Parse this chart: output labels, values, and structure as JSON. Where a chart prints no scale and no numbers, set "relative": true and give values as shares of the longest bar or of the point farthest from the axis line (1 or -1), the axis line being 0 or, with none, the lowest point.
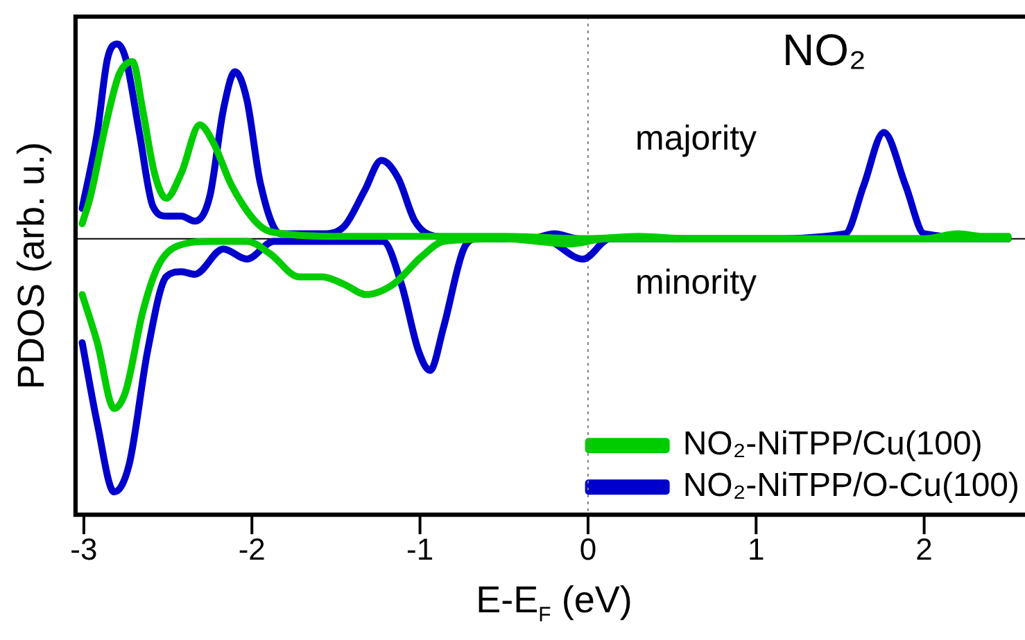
{
  "chart_data": {
    "type": "line",
    "relative": true,
    "xlabel": "E-E$_{F}$ (eV)",
    "ylabel": "PDOS (arb. u.)",
    "annotations": [
      "NO₂",
      "majority",
      "minority"
    ],
    "xlim": [
      -3.05,
      2.6
    ],
    "xticks": [
      -3,
      -2,
      -1,
      0,
      1,
      2
    ],
    "legend": "bottom right",
    "line_style": "solid",
    "marker": "none",
    "grid": false,
    "ref_lines": [
      {
        "axis": "x",
        "value": 0,
        "color": "#808080",
        "line_style": "dotted"
      },
      {
        "axis": "y",
        "value": 0,
        "color": "#000000",
        "line_style": "solid"
      }
    ],
    "series": [
      {
        "name": "NO₂-NiTPP/Cu(100)",
        "color": "#00cc00",
        "x": [
          -3.01,
          -2.96,
          -2.87,
          -2.79,
          -2.71,
          -2.65,
          -2.58,
          -2.51,
          -2.42,
          -2.31,
          -2.23,
          -2.12,
          -1.95,
          -1.81,
          -1.5,
          -1.0,
          -0.5,
          0.0,
          0.3,
          0.6,
          1.0,
          1.5,
          2.0,
          2.2,
          2.35,
          2.5
        ],
        "values": [
          0.06,
          0.17,
          0.45,
          0.65,
          0.7,
          0.51,
          0.26,
          0.16,
          0.26,
          0.45,
          0.38,
          0.21,
          0.05,
          0.02,
          0.01,
          0.01,
          0.01,
          0.0,
          0.01,
          0.0,
          0.0,
          0.0,
          0.0,
          0.02,
          0.01,
          0.01
        ]
      },
      {
        "color": "#00cc00",
        "x": [
          -3.01,
          -2.92,
          -2.82,
          -2.75,
          -2.65,
          -2.56,
          -2.45,
          -2.23,
          -2.03,
          -1.89,
          -1.72,
          -1.58,
          -1.45,
          -1.32,
          -1.16,
          -0.99,
          -0.86,
          -0.5,
          -0.1,
          0.1,
          1.0,
          2.0,
          2.5
        ],
        "values": [
          -0.22,
          -0.41,
          -0.67,
          -0.6,
          -0.29,
          -0.11,
          -0.03,
          -0.01,
          -0.01,
          -0.06,
          -0.15,
          -0.15,
          -0.18,
          -0.22,
          -0.18,
          -0.07,
          -0.01,
          0.0,
          -0.02,
          0.0,
          0.0,
          0.0,
          0.0
        ]
      },
      {
        "name": "NO₂-NiTPP/O-Cu(100)",
        "color": "#0000cc",
        "x": [
          -3.01,
          -2.92,
          -2.86,
          -2.8,
          -2.75,
          -2.67,
          -2.59,
          -2.51,
          -2.42,
          -2.34,
          -2.25,
          -2.17,
          -2.1,
          -2.03,
          -1.95,
          -1.83,
          -1.58,
          -1.45,
          -1.33,
          -1.23,
          -1.13,
          -1.03,
          -0.91,
          -0.6,
          -0.35,
          -0.2,
          -0.05,
          0.2,
          1.0,
          1.53,
          1.64,
          1.76,
          1.89,
          2.0,
          2.5
        ],
        "values": [
          0.12,
          0.42,
          0.71,
          0.77,
          0.71,
          0.42,
          0.13,
          0.09,
          0.09,
          0.07,
          0.17,
          0.51,
          0.66,
          0.55,
          0.22,
          0.02,
          0.02,
          0.05,
          0.19,
          0.31,
          0.24,
          0.07,
          0.01,
          0.0,
          0.0,
          0.02,
          0.0,
          0.0,
          0.0,
          0.02,
          0.21,
          0.42,
          0.21,
          0.02,
          0.0
        ]
      },
      {
        "color": "#0000cc",
        "x": [
          -3.01,
          -2.92,
          -2.82,
          -2.73,
          -2.62,
          -2.51,
          -2.42,
          -2.34,
          -2.17,
          -2.03,
          -1.87,
          -1.22,
          -1.11,
          -1.01,
          -0.94,
          -0.86,
          -0.74,
          -0.66,
          -0.27,
          -0.03,
          0.13,
          1.0,
          2.0,
          2.5
        ],
        "values": [
          -0.41,
          -0.73,
          -1.0,
          -0.89,
          -0.44,
          -0.15,
          -0.13,
          -0.14,
          -0.04,
          -0.08,
          -0.01,
          -0.01,
          -0.18,
          -0.44,
          -0.52,
          -0.35,
          -0.04,
          0.0,
          0.0,
          -0.08,
          0.0,
          0.0,
          0.0,
          0.0
        ]
      }
    ]
  }
}
